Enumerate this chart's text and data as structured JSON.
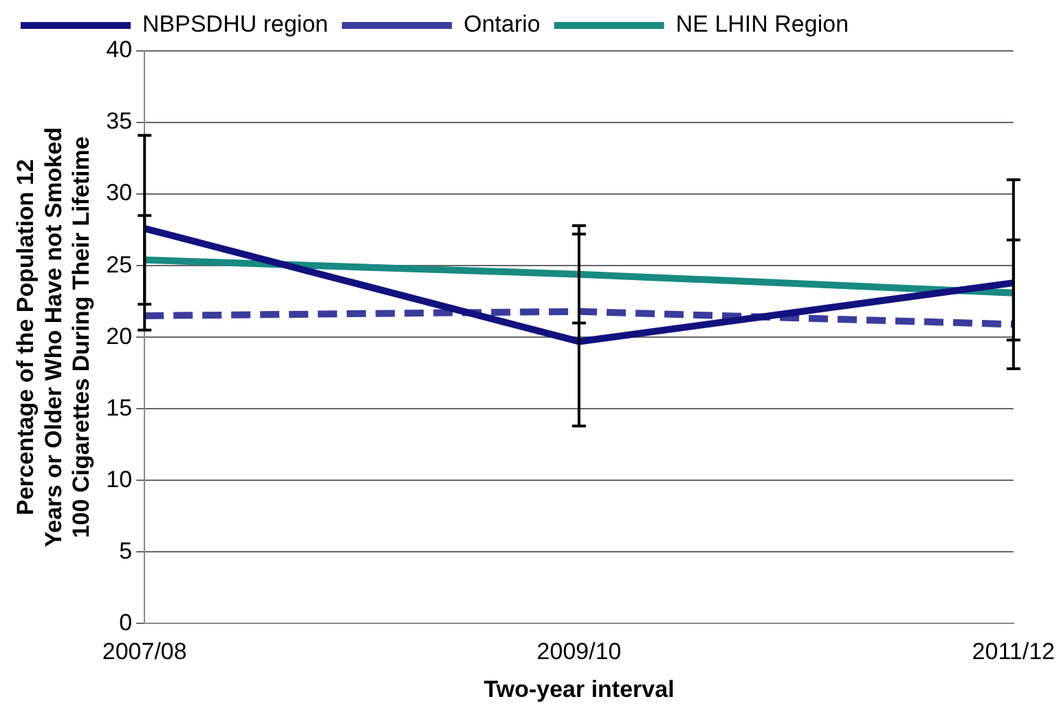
{
  "chart_data": {
    "type": "line",
    "xlabel": "Two-year interval",
    "ylabel": "Percentage of the Population 12 Years or Older Who Have not Smoked 100 Cigarettes During Their Lifetime",
    "categories": [
      "2007/08",
      "2009/10",
      "2011/12"
    ],
    "series": [
      {
        "name": "NBPSDHU region",
        "color": "#12127f",
        "values": [
          27.6,
          19.7,
          23.8
        ],
        "errors": [
          [
            20.5,
            34.1
          ],
          [
            13.8,
            27.8
          ],
          [
            17.8,
            31.0
          ]
        ]
      },
      {
        "name": "Ontario",
        "color": "#3a3c9c",
        "values": [
          21.5,
          21.8,
          20.9
        ],
        "line_style": "dashed"
      },
      {
        "name": "NE LHIN Region",
        "color": "#188a82",
        "values": [
          25.4,
          24.4,
          23.1
        ],
        "errors": [
          [
            22.3,
            28.5
          ],
          [
            21.0,
            27.2
          ],
          [
            19.8,
            26.8
          ]
        ]
      }
    ],
    "ylim": [
      0,
      40
    ],
    "yticks": [
      0,
      5,
      10,
      15,
      20,
      25,
      30,
      35,
      40
    ],
    "grid": "y",
    "legend": "top",
    "marker": "none"
  }
}
